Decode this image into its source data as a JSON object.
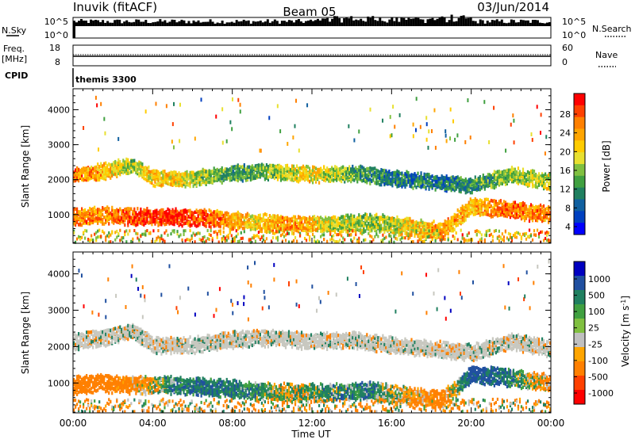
{
  "header": {
    "station": "Inuvik (fitACF)",
    "beam": "Beam 05",
    "date": "03/Jun/2014"
  },
  "nsky_panel": {
    "left_label": "N.Sky",
    "right_label": "N.Search",
    "ticks_left": [
      "10^5",
      "10^0"
    ],
    "ticks_right": [
      "10^5",
      "10^0"
    ]
  },
  "freq_panel": {
    "left_label_1": "Freq.",
    "left_label_2": "[MHz]",
    "right_label": "Nave",
    "ticks_left": [
      "18",
      "8"
    ],
    "ticks_right": [
      "60",
      "0"
    ]
  },
  "cpid": {
    "label": "CPID",
    "value": "themis 3300"
  },
  "x_axis": {
    "label": "Time UT",
    "ticks": [
      "00:00",
      "04:00",
      "08:00",
      "12:00",
      "16:00",
      "20:00",
      "00:00"
    ]
  },
  "chart_data": [
    {
      "type": "heatmap",
      "title": "",
      "xlabel": "Time UT",
      "ylabel": "Slant Range [km]",
      "x_ticks": [
        "00:00",
        "04:00",
        "08:00",
        "12:00",
        "16:00",
        "20:00",
        "00:00"
      ],
      "y_ticks": [
        "1000",
        "2000",
        "3000",
        "4000"
      ],
      "ylim": [
        180,
        4600
      ],
      "colorbar": {
        "label": "Power [dB]",
        "ticks": [
          "28",
          "24",
          "20",
          "16",
          "12",
          "8",
          "4"
        ],
        "colors": [
          "#ff0000",
          "#ff4000",
          "#ff8000",
          "#ffa500",
          "#ffcc00",
          "#e8e030",
          "#80c040",
          "#40a040",
          "#208060",
          "#1060a0",
          "#0040c0",
          "#0000ff"
        ]
      },
      "bands": [
        {
          "name": "near",
          "x": [
            0,
            1.5,
            3,
            5,
            7,
            9,
            11,
            13,
            15,
            17,
            18.5,
            20,
            22,
            24
          ],
          "y": [
            1000,
            1050,
            1000,
            1000,
            950,
            850,
            800,
            800,
            850,
            700,
            600,
            1300,
            1200,
            1050
          ],
          "value_db": [
            24,
            22,
            26,
            28,
            24,
            18,
            22,
            16,
            14,
            18,
            22,
            20,
            24,
            22
          ]
        },
        {
          "name": "far",
          "x": [
            0,
            1.5,
            3,
            4,
            6,
            8,
            10,
            12,
            14,
            16,
            18,
            20,
            22,
            24
          ],
          "y": [
            2200,
            2300,
            2500,
            2100,
            2100,
            2250,
            2300,
            2200,
            2250,
            2100,
            2000,
            1900,
            2200,
            2000
          ],
          "value_db": [
            24,
            20,
            14,
            20,
            16,
            10,
            14,
            18,
            12,
            8,
            8,
            10,
            14,
            16
          ]
        }
      ]
    },
    {
      "type": "heatmap",
      "title": "",
      "xlabel": "Time UT",
      "ylabel": "Slant Range [km]",
      "x_ticks": [
        "00:00",
        "04:00",
        "08:00",
        "12:00",
        "16:00",
        "20:00",
        "00:00"
      ],
      "y_ticks": [
        "1000",
        "2000",
        "3000",
        "4000"
      ],
      "ylim": [
        180,
        4600
      ],
      "colorbar": {
        "label": "Velocity [m s^-1]",
        "ticks": [
          "1000",
          "500",
          "100",
          "25",
          "-25",
          "-100",
          "-500",
          "-1000"
        ],
        "colors": [
          "#0000c0",
          "#2050a0",
          "#208060",
          "#40a040",
          "#80c040",
          "#c0c0c0",
          "#ffa500",
          "#ff8000",
          "#ff4000",
          "#ff0000"
        ]
      },
      "bands": [
        {
          "name": "near",
          "x": [
            0,
            1.5,
            3,
            5,
            7,
            9,
            11,
            13,
            15,
            17,
            18.5,
            20,
            22,
            24
          ],
          "y": [
            1000,
            1050,
            1000,
            1000,
            950,
            850,
            800,
            800,
            850,
            700,
            600,
            1300,
            1200,
            1050
          ],
          "value_ms": [
            -300,
            -300,
            -200,
            200,
            300,
            150,
            0,
            150,
            200,
            -100,
            -300,
            500,
            200,
            -200
          ]
        },
        {
          "name": "far",
          "x": [
            0,
            1.5,
            3,
            4,
            6,
            8,
            10,
            12,
            14,
            16,
            18,
            20,
            22,
            24
          ],
          "y": [
            2200,
            2300,
            2500,
            2100,
            2100,
            2250,
            2300,
            2200,
            2250,
            2100,
            2000,
            1900,
            2200,
            2000
          ],
          "value_ms": [
            0,
            0,
            0,
            0,
            0,
            0,
            0,
            0,
            0,
            0,
            0,
            0,
            0,
            0
          ]
        }
      ]
    }
  ]
}
